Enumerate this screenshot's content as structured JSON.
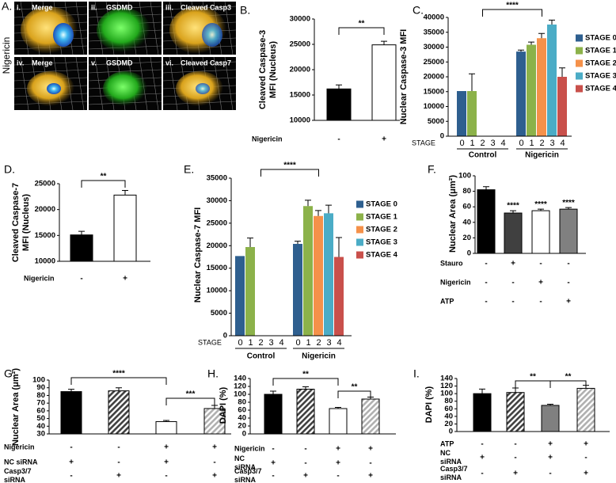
{
  "panel_a": {
    "label": "A.",
    "side_label": "Nigericin",
    "tiles": [
      {
        "num": "i.",
        "label": "Merge"
      },
      {
        "num": "ii.",
        "label": "GSDMD"
      },
      {
        "num": "iii.",
        "label": "Cleaved Casp3"
      },
      {
        "num": "iv.",
        "label": "Merge"
      },
      {
        "num": "v.",
        "label": "GSDMD"
      },
      {
        "num": "vi.",
        "label": "Cleaved Casp7"
      }
    ]
  },
  "chart_data": [
    {
      "type": "bar",
      "panel": "B.",
      "ylabel": [
        "Cleaved Caspase-3",
        "MFI (Nucleus)"
      ],
      "ylim": [
        10000,
        30000
      ],
      "yticks": [
        10000,
        15000,
        20000,
        25000,
        30000
      ],
      "values": [
        16200,
        24900
      ],
      "errors": [
        800,
        700
      ],
      "colors": [
        "#000000",
        "#ffffff"
      ],
      "hatched": [
        false,
        false
      ],
      "rows": [
        {
          "label": [
            "Nigericin"
          ],
          "values": [
            "-",
            "+"
          ]
        }
      ],
      "annotations": [
        "**"
      ]
    },
    {
      "type": "grouped_bar",
      "panel": "C.",
      "ylabel": [
        "Nuclear Caspase-3 MFI"
      ],
      "ylim": [
        0,
        40000
      ],
      "yticks": [
        0,
        5000,
        10000,
        15000,
        20000,
        25000,
        30000,
        35000,
        40000
      ],
      "categories": [
        "Control",
        "Nigericin"
      ],
      "stage_label": "STAGE",
      "stage_ticks": [
        "0",
        "1",
        "2",
        "3",
        "4"
      ],
      "series": [
        {
          "name": "STAGE 0",
          "color": "#2e5f8f",
          "values": [
            15200,
            28500
          ],
          "errors": [
            null,
            500
          ]
        },
        {
          "name": "STAGE 1",
          "color": "#8cb24a",
          "values": [
            15200,
            30800
          ],
          "errors": [
            5800,
            900
          ]
        },
        {
          "name": "STAGE 2",
          "color": "#f5914a",
          "values": [
            null,
            33000
          ],
          "errors": [
            null,
            1600
          ]
        },
        {
          "name": "STAGE 3",
          "color": "#4bacc6",
          "values": [
            null,
            37600
          ],
          "errors": [
            null,
            1500
          ]
        },
        {
          "name": "STAGE 4",
          "color": "#c9504b",
          "values": [
            null,
            20000
          ],
          "errors": [
            null,
            3000
          ]
        }
      ],
      "legend": "right",
      "annotations": [
        "****"
      ]
    },
    {
      "type": "bar",
      "panel": "D.",
      "ylabel": [
        "Cleaved Caspase-7",
        "MFI (Nucleus)"
      ],
      "ylim": [
        10000,
        25000
      ],
      "yticks": [
        10000,
        15000,
        20000,
        25000
      ],
      "values": [
        15100,
        22800
      ],
      "errors": [
        700,
        900
      ],
      "colors": [
        "#000000",
        "#ffffff"
      ],
      "hatched": [
        false,
        false
      ],
      "rows": [
        {
          "label": [
            "Nigericin"
          ],
          "values": [
            "-",
            "+"
          ]
        }
      ],
      "annotations": [
        "**"
      ]
    },
    {
      "type": "grouped_bar",
      "panel": "E.",
      "ylabel": [
        "Nuclear Caspase-7  MFI"
      ],
      "ylim": [
        0,
        35000
      ],
      "yticks": [
        0,
        5000,
        10000,
        15000,
        20000,
        25000,
        30000,
        35000
      ],
      "categories": [
        "Control",
        "Nigericin"
      ],
      "stage_label": "STAGE",
      "stage_ticks": [
        "0",
        "1",
        "2",
        "3",
        "4"
      ],
      "series": [
        {
          "name": "STAGE 0",
          "color": "#2e5f8f",
          "values": [
            17700,
            20400
          ],
          "errors": [
            null,
            600
          ]
        },
        {
          "name": "STAGE 1",
          "color": "#8cb24a",
          "values": [
            19700,
            28800
          ],
          "errors": [
            2000,
            1300
          ]
        },
        {
          "name": "STAGE 2",
          "color": "#f5914a",
          "values": [
            null,
            26600
          ],
          "errors": [
            null,
            1200
          ]
        },
        {
          "name": "STAGE 3",
          "color": "#4bacc6",
          "values": [
            null,
            27200
          ],
          "errors": [
            null,
            1800
          ]
        },
        {
          "name": "STAGE 4",
          "color": "#c9504b",
          "values": [
            null,
            17500
          ],
          "errors": [
            null,
            4300
          ]
        }
      ],
      "legend": "right",
      "annotations": [
        "****"
      ]
    },
    {
      "type": "bar",
      "panel": "F.",
      "ylabel": [
        "Nuclear Area (μm²)"
      ],
      "ylim": [
        0,
        100
      ],
      "yticks": [
        0,
        20,
        40,
        60,
        80,
        100
      ],
      "values": [
        82,
        52,
        55,
        57
      ],
      "errors": [
        4,
        3,
        2,
        2
      ],
      "colors": [
        "#000000",
        "#404040",
        "#ffffff",
        "#808080"
      ],
      "hatched": [
        false,
        false,
        false,
        false
      ],
      "rows": [
        {
          "label": [
            "Stauro"
          ],
          "values": [
            "-",
            "+",
            "-",
            "-"
          ]
        },
        {
          "label": [
            "Nigericin"
          ],
          "values": [
            "-",
            "-",
            "+",
            "-"
          ]
        },
        {
          "label": [
            "ATP"
          ],
          "values": [
            "-",
            "-",
            "-",
            "+"
          ]
        }
      ],
      "annotations": [
        "****",
        "****",
        "****"
      ]
    },
    {
      "type": "bar",
      "panel": "G.",
      "ylabel": [
        "Nuclear Area (μm²)"
      ],
      "ylim": [
        30,
        100
      ],
      "yticks": [
        30,
        40,
        50,
        60,
        70,
        80,
        90,
        100
      ],
      "values": [
        85,
        86,
        46,
        63
      ],
      "errors": [
        3,
        4,
        1.5,
        4
      ],
      "colors": [
        "#000000",
        "#404040",
        "#ffffff",
        "#b0b0b0"
      ],
      "hatched": [
        false,
        true,
        false,
        true
      ],
      "rows": [
        {
          "label": [
            "Nigericin"
          ],
          "values": [
            "-",
            "-",
            "+",
            "+"
          ]
        },
        {
          "label": [
            "NC siRNA"
          ],
          "values": [
            "+",
            "-",
            "+",
            "-"
          ]
        },
        {
          "label": [
            "Casp3/7",
            "siRNA"
          ],
          "values": [
            "-",
            "+",
            "-",
            "+"
          ]
        }
      ],
      "annotations": [
        "****",
        "***"
      ]
    },
    {
      "type": "bar",
      "panel": "H.",
      "ylabel": [
        "DAPI (%)"
      ],
      "ylim": [
        0,
        140
      ],
      "yticks": [
        0,
        20,
        40,
        60,
        80,
        100,
        120,
        140
      ],
      "values": [
        100,
        113,
        64,
        88
      ],
      "errors": [
        8,
        6,
        3,
        5
      ],
      "colors": [
        "#000000",
        "#404040",
        "#ffffff",
        "#b0b0b0"
      ],
      "hatched": [
        false,
        true,
        false,
        true
      ],
      "rows": [
        {
          "label": [
            "Nigericin"
          ],
          "values": [
            "-",
            "-",
            "+",
            "+"
          ]
        },
        {
          "label": [
            "NC",
            "siRNA"
          ],
          "values": [
            "+",
            "-",
            "+",
            "-"
          ]
        },
        {
          "label": [
            "Casp3/7",
            "siRNA"
          ],
          "values": [
            "-",
            "+",
            "-",
            "+"
          ]
        }
      ],
      "annotations": [
        "**",
        "**"
      ]
    },
    {
      "type": "bar",
      "panel": "I.",
      "ylabel": [
        "DAPI (%)"
      ],
      "ylim": [
        0,
        140
      ],
      "yticks": [
        0,
        20,
        40,
        60,
        80,
        100,
        120,
        140
      ],
      "values": [
        100,
        103,
        69,
        114
      ],
      "errors": [
        12,
        12,
        3,
        8
      ],
      "colors": [
        "#000000",
        "#404040",
        "#808080",
        "#b0b0b0"
      ],
      "hatched": [
        false,
        true,
        false,
        true
      ],
      "rows": [
        {
          "label": [
            "ATP"
          ],
          "values": [
            "-",
            "-",
            "+",
            "+"
          ]
        },
        {
          "label": [
            "NC",
            "siRNA"
          ],
          "values": [
            "+",
            "-",
            "+",
            "-"
          ]
        },
        {
          "label": [
            "Casp3/7",
            "siRNA"
          ],
          "values": [
            "-",
            "+",
            "-",
            "+"
          ]
        }
      ],
      "annotations": [
        "**",
        "**"
      ]
    }
  ]
}
